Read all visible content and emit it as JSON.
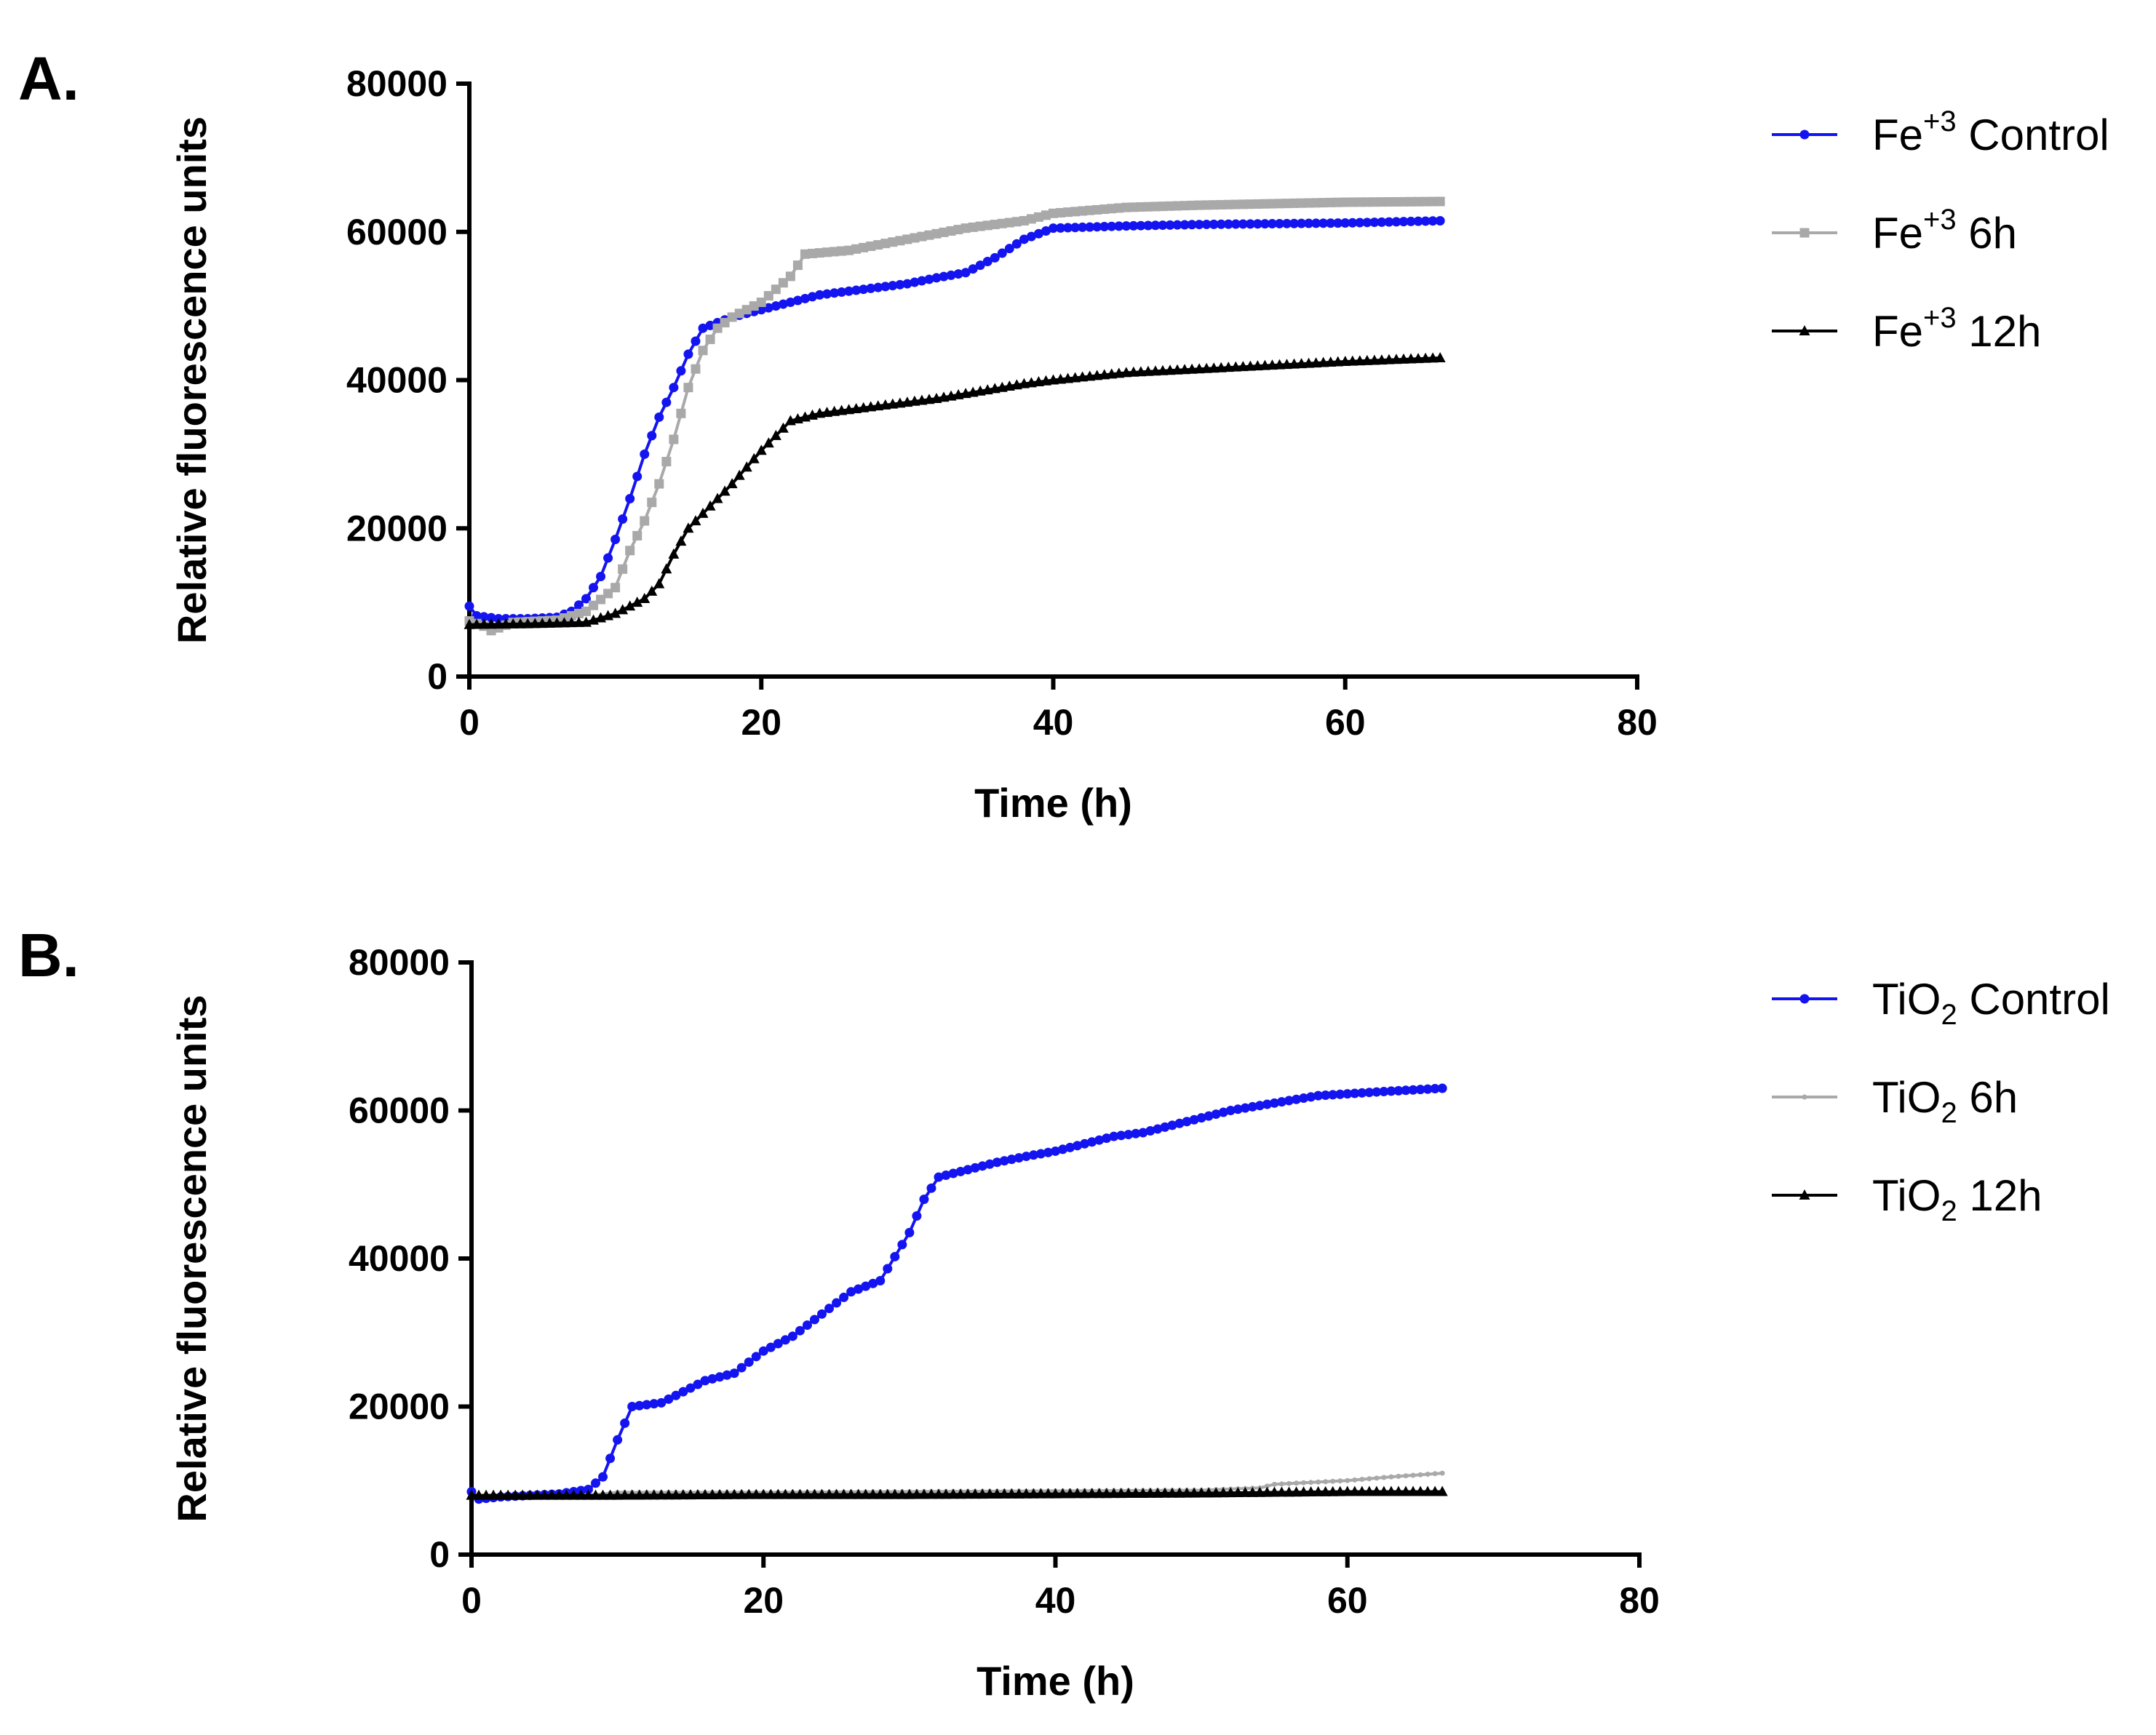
{
  "chart_data": [
    {
      "panel_label": "A.",
      "type": "line",
      "xlabel": "Time (h)",
      "ylabel": "Relative fluorescence units",
      "xlim": [
        0,
        80
      ],
      "ylim": [
        0,
        80000
      ],
      "xticks": [
        "0",
        "20",
        "40",
        "60",
        "80"
      ],
      "yticks": [
        "0",
        "20000",
        "40000",
        "60000",
        "80000"
      ],
      "legend_position": "right",
      "series": [
        {
          "name": "Fe+3 Control",
          "legend": {
            "base": "Fe",
            "sup": "+3",
            "sub": "",
            "rest": " Control"
          },
          "color": "#1414f0",
          "marker": "circle",
          "points": [
            [
              0,
              9500
            ],
            [
              0.5,
              8200
            ],
            [
              2,
              7800
            ],
            [
              4,
              7800
            ],
            [
              6,
              8000
            ],
            [
              7,
              8800
            ],
            [
              8,
              10500
            ],
            [
              9,
              13500
            ],
            [
              10,
              18500
            ],
            [
              11,
              24000
            ],
            [
              12,
              30000
            ],
            [
              13,
              35000
            ],
            [
              14,
              39000
            ],
            [
              15,
              43500
            ],
            [
              16,
              47000
            ],
            [
              18,
              48500
            ],
            [
              20,
              49500
            ],
            [
              22,
              50500
            ],
            [
              24,
              51500
            ],
            [
              26,
              52000
            ],
            [
              28,
              52500
            ],
            [
              30,
              53000
            ],
            [
              32,
              53800
            ],
            [
              34,
              54500
            ],
            [
              36,
              56500
            ],
            [
              38,
              59000
            ],
            [
              40,
              60500
            ],
            [
              45,
              60800
            ],
            [
              50,
              61000
            ],
            [
              55,
              61100
            ],
            [
              60,
              61200
            ],
            [
              66.5,
              61500
            ]
          ]
        },
        {
          "name": "Fe+3 6h",
          "legend": {
            "base": "Fe",
            "sup": "+3",
            "sub": "",
            "rest": " 6h"
          },
          "color": "#a9a9a9",
          "marker": "square",
          "points": [
            [
              0,
              7500
            ],
            [
              1,
              6800
            ],
            [
              1.5,
              6200
            ],
            [
              3,
              7300
            ],
            [
              6,
              7600
            ],
            [
              8,
              8800
            ],
            [
              10,
              12000
            ],
            [
              11,
              17000
            ],
            [
              12,
              21000
            ],
            [
              13,
              26000
            ],
            [
              14,
              32000
            ],
            [
              15,
              39000
            ],
            [
              16,
              44000
            ],
            [
              17,
              47000
            ],
            [
              18,
              48500
            ],
            [
              20,
              50500
            ],
            [
              22,
              54000
            ],
            [
              23,
              57000
            ],
            [
              26,
              57500
            ],
            [
              30,
              59000
            ],
            [
              34,
              60500
            ],
            [
              38,
              61500
            ],
            [
              40,
              62500
            ],
            [
              45,
              63300
            ],
            [
              50,
              63600
            ],
            [
              55,
              63800
            ],
            [
              60,
              64000
            ],
            [
              66.5,
              64100
            ]
          ]
        },
        {
          "name": "Fe+3 12h",
          "legend": {
            "base": "Fe",
            "sup": "+3",
            "sub": "",
            "rest": " 12h"
          },
          "color": "#000000",
          "marker": "triangle",
          "points": [
            [
              0,
              7000
            ],
            [
              4,
              7100
            ],
            [
              8,
              7300
            ],
            [
              10,
              8500
            ],
            [
              12,
              10500
            ],
            [
              13,
              12500
            ],
            [
              14,
              16500
            ],
            [
              15,
              20000
            ],
            [
              16,
              22000
            ],
            [
              18,
              26000
            ],
            [
              20,
              30500
            ],
            [
              22,
              34500
            ],
            [
              24,
              35500
            ],
            [
              26,
              36000
            ],
            [
              28,
              36500
            ],
            [
              30,
              37000
            ],
            [
              32,
              37500
            ],
            [
              35,
              38500
            ],
            [
              38,
              39500
            ],
            [
              40,
              40000
            ],
            [
              45,
              41000
            ],
            [
              50,
              41500
            ],
            [
              55,
              42000
            ],
            [
              60,
              42500
            ],
            [
              66.5,
              43000
            ]
          ]
        }
      ]
    },
    {
      "panel_label": "B.",
      "type": "line",
      "xlabel": "Time (h)",
      "ylabel": "Relative fluorescence units",
      "xlim": [
        0,
        80
      ],
      "ylim": [
        0,
        80000
      ],
      "xticks": [
        "0",
        "20",
        "40",
        "60",
        "80"
      ],
      "yticks": [
        "0",
        "20000",
        "40000",
        "60000",
        "80000"
      ],
      "legend_position": "right",
      "series": [
        {
          "name": "TiO2 Control",
          "legend": {
            "base": "TiO",
            "sup": "",
            "sub": "2",
            "rest": " Control"
          },
          "color": "#1414f0",
          "marker": "circle",
          "points": [
            [
              0,
              8500
            ],
            [
              0.5,
              7500
            ],
            [
              2,
              7800
            ],
            [
              4,
              8000
            ],
            [
              6,
              8200
            ],
            [
              8,
              8800
            ],
            [
              9,
              10500
            ],
            [
              10,
              15500
            ],
            [
              11,
              20000
            ],
            [
              13,
              20500
            ],
            [
              14,
              21500
            ],
            [
              16,
              23500
            ],
            [
              18,
              24500
            ],
            [
              20,
              27500
            ],
            [
              22,
              29500
            ],
            [
              24,
              32500
            ],
            [
              26,
              35500
            ],
            [
              28,
              37000
            ],
            [
              30,
              43500
            ],
            [
              31,
              48000
            ],
            [
              32,
              51000
            ],
            [
              34,
              52000
            ],
            [
              36,
              53000
            ],
            [
              38,
              53800
            ],
            [
              40,
              54500
            ],
            [
              42,
              55500
            ],
            [
              44,
              56500
            ],
            [
              46,
              57000
            ],
            [
              48,
              58000
            ],
            [
              50,
              59000
            ],
            [
              52,
              60000
            ],
            [
              55,
              61000
            ],
            [
              58,
              62000
            ],
            [
              62,
              62500
            ],
            [
              66.5,
              63000
            ]
          ]
        },
        {
          "name": "TiO2 6h",
          "legend": {
            "base": "TiO",
            "sup": "",
            "sub": "2",
            "rest": " 6h"
          },
          "color": "#a9a9a9",
          "marker": "dot",
          "points": [
            [
              0,
              7800
            ],
            [
              8,
              8000
            ],
            [
              10,
              8400
            ],
            [
              20,
              8400
            ],
            [
              30,
              8500
            ],
            [
              40,
              8600
            ],
            [
              50,
              8700
            ],
            [
              54,
              9000
            ],
            [
              55,
              9500
            ],
            [
              58,
              9800
            ],
            [
              60,
              10000
            ],
            [
              63,
              10500
            ],
            [
              66.5,
              11000
            ]
          ]
        },
        {
          "name": "TiO2 12h",
          "legend": {
            "base": "TiO",
            "sup": "",
            "sub": "2",
            "rest": " 12h"
          },
          "color": "#000000",
          "marker": "triangle",
          "points": [
            [
              0,
              8000
            ],
            [
              10,
              8000
            ],
            [
              20,
              8100
            ],
            [
              30,
              8100
            ],
            [
              40,
              8200
            ],
            [
              50,
              8300
            ],
            [
              55,
              8400
            ],
            [
              60,
              8500
            ],
            [
              66.5,
              8500
            ]
          ]
        }
      ]
    }
  ]
}
